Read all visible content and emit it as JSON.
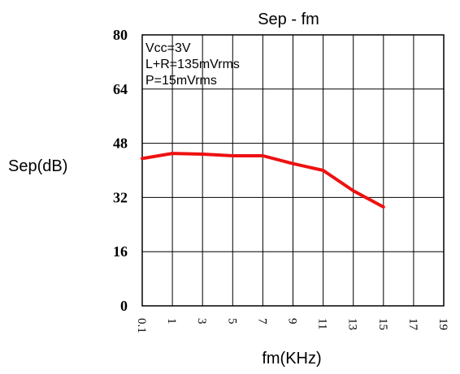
{
  "chart_data": {
    "type": "line",
    "title": "Sep  -  fm",
    "xlabel": "fm(KHz)",
    "ylabel": "Sep(dB)",
    "x_ticks": [
      "0.1",
      "1",
      "3",
      "5",
      "7",
      "9",
      "11",
      "13",
      "15",
      "17",
      "19"
    ],
    "y_ticks": [
      "0",
      "16",
      "32",
      "48",
      "64",
      "80"
    ],
    "ylim": [
      0,
      80
    ],
    "grid": true,
    "annotations": [
      "Vcc=3V",
      "L+R=135mVrms",
      "P=15mVrms"
    ],
    "series": [
      {
        "color": "#ee1111",
        "x": [
          0.1,
          1,
          3,
          5,
          7,
          9,
          11,
          13,
          15
        ],
        "y": [
          43.5,
          45,
          44.8,
          44.3,
          44.3,
          42,
          40,
          34,
          29.2
        ]
      }
    ]
  }
}
